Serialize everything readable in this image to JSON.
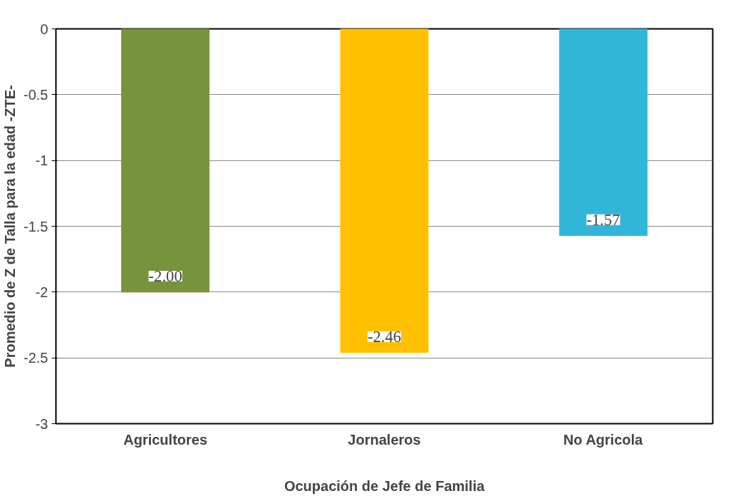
{
  "chart_data": {
    "type": "bar",
    "xlabel": "Ocupación de Jefe de Familia",
    "ylabel": "Promedio de Z de Talla para la edad -ZTE-",
    "categories": [
      "Agricultores",
      "Jornaleros",
      "No Agricola"
    ],
    "values": [
      -2.0,
      -2.46,
      -1.57
    ],
    "value_labels": [
      "-2.00",
      "-2.46",
      "-1.57"
    ],
    "colors": [
      "#77933c",
      "#ffc000",
      "#31b6d9"
    ],
    "ylim": [
      -3,
      0
    ],
    "yticks": [
      -3,
      -2.5,
      -2,
      -1.5,
      -1,
      -0.5,
      0
    ],
    "grid": "y"
  }
}
